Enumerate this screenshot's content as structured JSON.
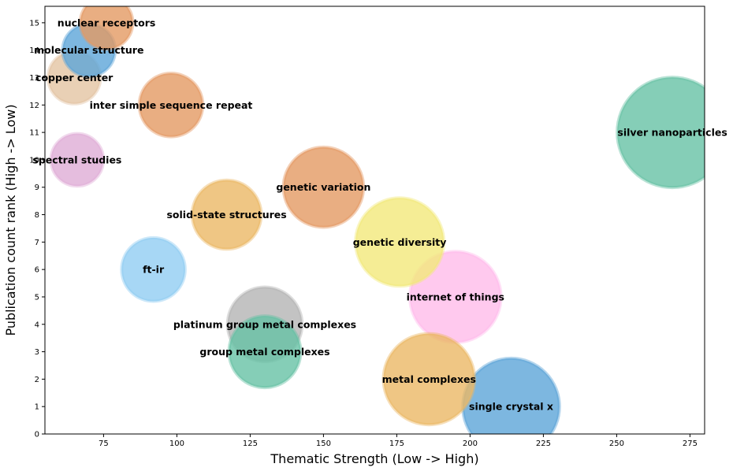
{
  "chart_data": {
    "type": "scatter",
    "title": "",
    "xlabel": "Thematic Strength (Low -> High)",
    "ylabel": "Publication count rank (High -> Low)",
    "xlim": [
      55,
      280
    ],
    "ylim": [
      0,
      15.6
    ],
    "xticks": [
      75,
      100,
      125,
      150,
      175,
      200,
      225,
      250,
      275
    ],
    "yticks": [
      0,
      1,
      2,
      3,
      4,
      5,
      6,
      7,
      8,
      9,
      10,
      11,
      12,
      13,
      14,
      15
    ],
    "grid": false,
    "legend": "none",
    "points": [
      {
        "label": "silver nanoparticles",
        "x": 269,
        "y": 11,
        "color": "#66c2a5",
        "size": 2.0
      },
      {
        "label": "internet of things",
        "x": 195,
        "y": 5,
        "color": "#ffbbea",
        "size": 1.65
      },
      {
        "label": "single crystal x",
        "x": 214,
        "y": 1,
        "color": "#5da5d8",
        "size": 1.75
      },
      {
        "label": "metal complexes",
        "x": 186,
        "y": 2,
        "color": "#ebb865",
        "size": 1.65
      },
      {
        "label": "genetic diversity",
        "x": 176,
        "y": 7,
        "color": "#f2e87a",
        "size": 1.6
      },
      {
        "label": "genetic variation",
        "x": 150,
        "y": 9,
        "color": "#e49a63",
        "size": 1.45
      },
      {
        "label": "platinum group metal complexes",
        "x": 130,
        "y": 4,
        "color": "#b4b4b4",
        "size": 1.35
      },
      {
        "label": "group metal complexes",
        "x": 130,
        "y": 3,
        "color": "#66c2a5",
        "size": 1.3
      },
      {
        "label": "solid-state structures",
        "x": 117,
        "y": 8,
        "color": "#ebb865",
        "size": 1.25
      },
      {
        "label": "inter simple sequence repeat",
        "x": 98,
        "y": 12,
        "color": "#e49a63",
        "size": 1.15
      },
      {
        "label": "ft-ir",
        "x": 92,
        "y": 6,
        "color": "#91cdf2",
        "size": 1.15
      },
      {
        "label": "spectral studies",
        "x": 66,
        "y": 10,
        "color": "#dfadd6",
        "size": 0.95
      },
      {
        "label": "copper center",
        "x": 65,
        "y": 13,
        "color": "#e3c4a3",
        "size": 0.95
      },
      {
        "label": "molecular structure",
        "x": 70,
        "y": 14,
        "color": "#5da5d8",
        "size": 0.95
      },
      {
        "label": "nuclear receptors",
        "x": 76,
        "y": 15,
        "color": "#e49a63",
        "size": 0.95
      }
    ]
  }
}
